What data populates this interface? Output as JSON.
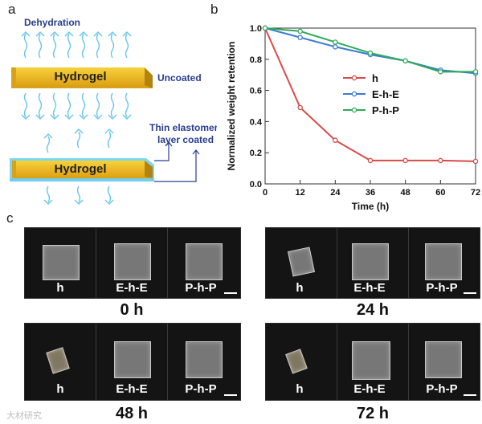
{
  "panel_labels": {
    "a": "a",
    "b": "b",
    "c": "c"
  },
  "schematic": {
    "dehydration": "Dehydration",
    "hydrogel": "Hydrogel",
    "uncoated": "Uncoated",
    "coated_line1": "Thin elastomer",
    "coated_line2": "layer coated"
  },
  "chart_data": {
    "type": "line",
    "xlabel": "Time (h)",
    "ylabel": "Normalized weight retention",
    "xlim": [
      0,
      72
    ],
    "ylim": [
      0,
      1.0
    ],
    "x": [
      0,
      12,
      24,
      36,
      48,
      60,
      72
    ],
    "xticks": [
      "0",
      "12",
      "24",
      "36",
      "48",
      "60",
      "72"
    ],
    "yticks": [
      "0.0",
      "0.2",
      "0.4",
      "0.6",
      "0.8",
      "1.0"
    ],
    "series": [
      {
        "name": "h",
        "color": "#d84b45",
        "values": [
          1.0,
          0.49,
          0.28,
          0.15,
          0.15,
          0.15,
          0.145
        ]
      },
      {
        "name": "E-h-E",
        "color": "#3a7bd5",
        "values": [
          1.0,
          0.94,
          0.88,
          0.83,
          0.79,
          0.73,
          0.71
        ]
      },
      {
        "name": "P-h-P",
        "color": "#2eaa57",
        "values": [
          1.0,
          0.98,
          0.91,
          0.84,
          0.79,
          0.72,
          0.72
        ]
      }
    ],
    "legend_position": "center-right",
    "grid": false
  },
  "photos": [
    {
      "time": "0 h",
      "labels": [
        "h",
        "E-h-E",
        "P-h-P"
      ]
    },
    {
      "time": "24 h",
      "labels": [
        "h",
        "E-h-E",
        "P-h-P"
      ]
    },
    {
      "time": "48 h",
      "labels": [
        "h",
        "E-h-E",
        "P-h-P"
      ]
    },
    {
      "time": "72 h",
      "labels": [
        "h",
        "E-h-E",
        "P-h-P"
      ]
    }
  ],
  "watermark": "大材研究"
}
